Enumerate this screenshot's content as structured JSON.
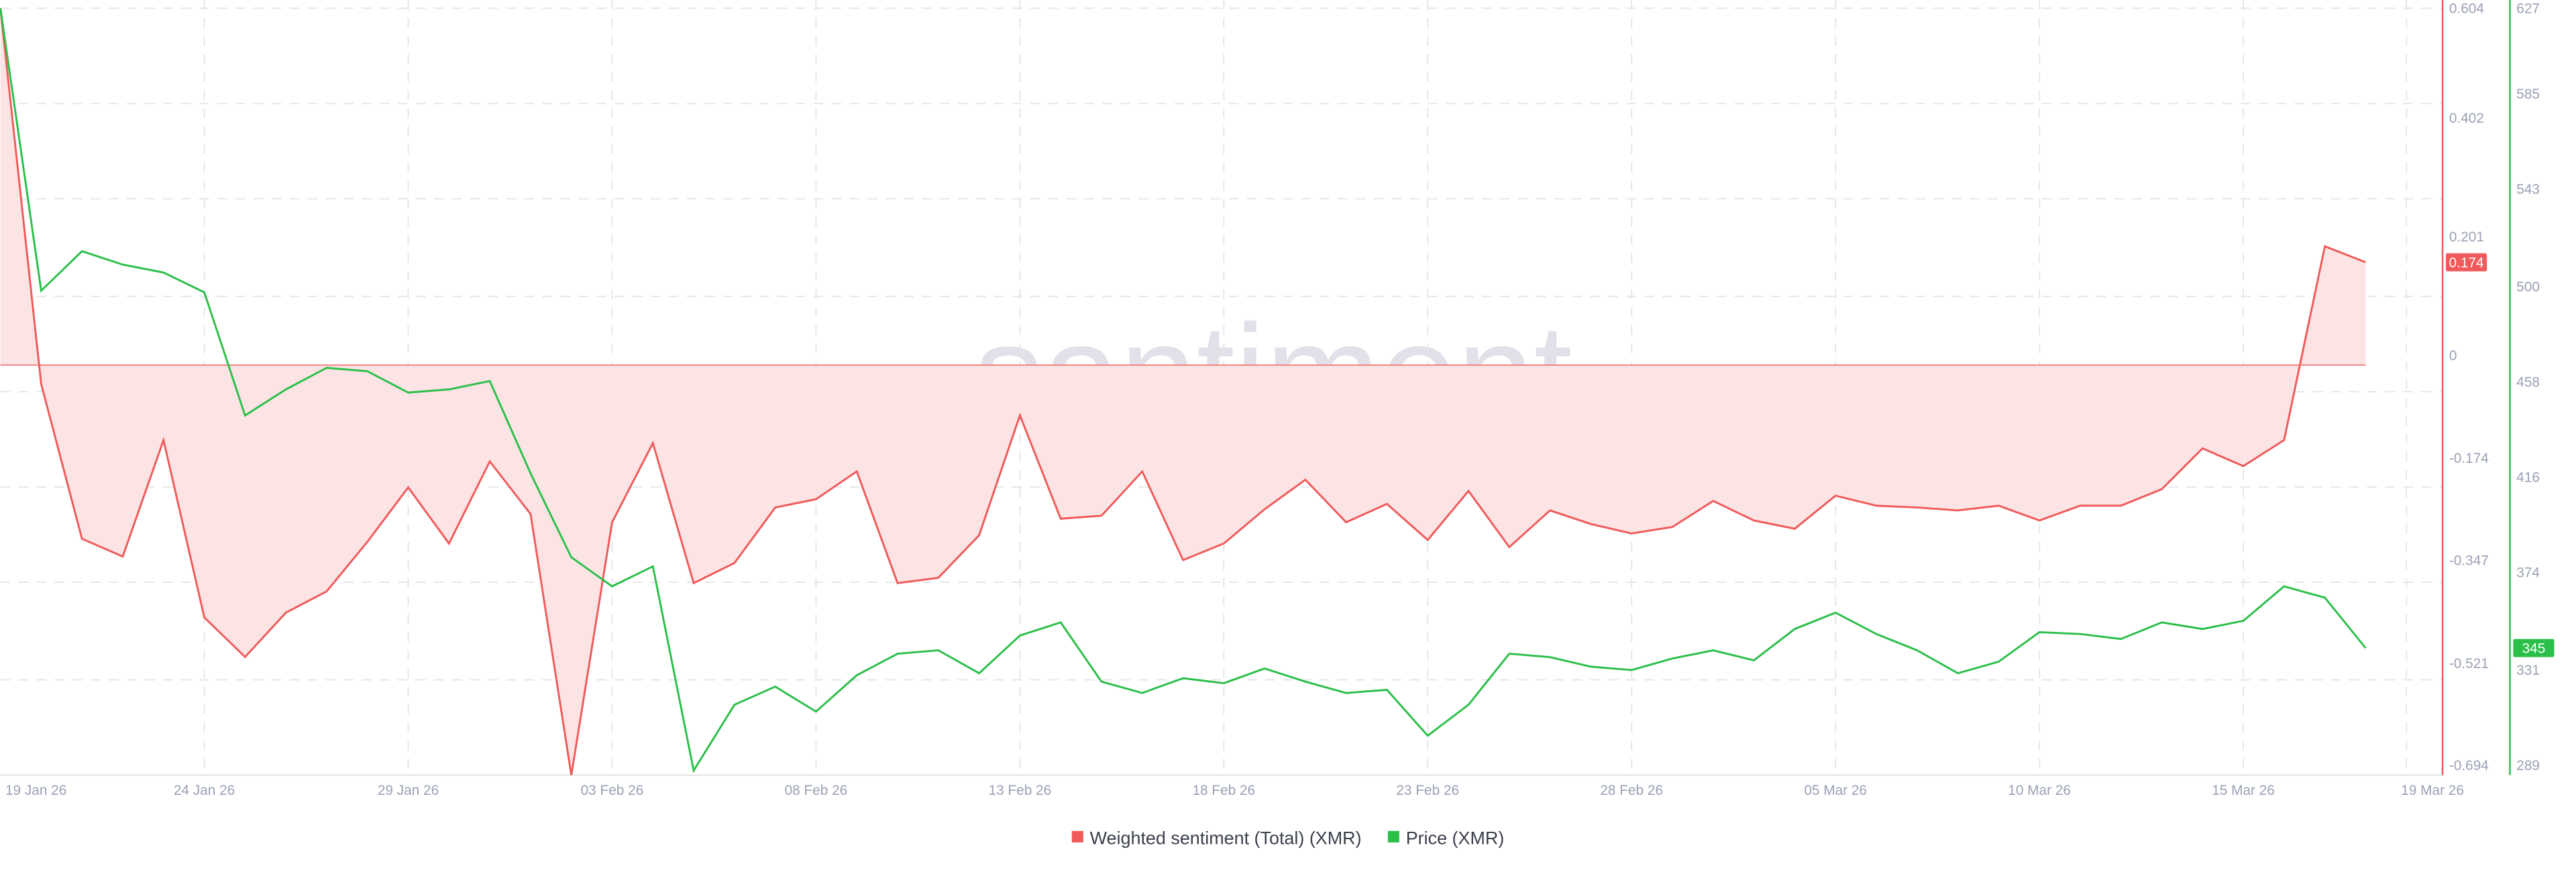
{
  "chart_data": {
    "type": "line",
    "watermark": "santiment",
    "x": [
      "2026-01-19",
      "2026-01-20",
      "2026-01-21",
      "2026-01-22",
      "2026-01-23",
      "2026-01-24",
      "2026-01-25",
      "2026-01-26",
      "2026-01-27",
      "2026-01-28",
      "2026-01-29",
      "2026-01-30",
      "2026-01-31",
      "2026-02-01",
      "2026-02-02",
      "2026-02-03",
      "2026-02-04",
      "2026-02-05",
      "2026-02-06",
      "2026-02-07",
      "2026-02-08",
      "2026-02-09",
      "2026-02-10",
      "2026-02-11",
      "2026-02-12",
      "2026-02-13",
      "2026-02-14",
      "2026-02-15",
      "2026-02-16",
      "2026-02-17",
      "2026-02-18",
      "2026-02-19",
      "2026-02-20",
      "2026-02-21",
      "2026-02-22",
      "2026-02-23",
      "2026-02-24",
      "2026-02-25",
      "2026-02-26",
      "2026-02-27",
      "2026-02-28",
      "2026-03-01",
      "2026-03-02",
      "2026-03-03",
      "2026-03-04",
      "2026-03-05",
      "2026-03-06",
      "2026-03-07",
      "2026-03-08",
      "2026-03-09",
      "2026-03-10",
      "2026-03-11",
      "2026-03-12",
      "2026-03-13",
      "2026-03-14",
      "2026-03-15",
      "2026-03-16",
      "2026-03-17",
      "2026-03-18"
    ],
    "xlim": [
      "2026-01-19",
      "2026-03-19"
    ],
    "xticks": [
      {
        "value": "2026-01-19",
        "label": "19 Jan 26"
      },
      {
        "value": "2026-01-24",
        "label": "24 Jan 26"
      },
      {
        "value": "2026-01-29",
        "label": "29 Jan 26"
      },
      {
        "value": "2026-02-03",
        "label": "03 Feb 26"
      },
      {
        "value": "2026-02-08",
        "label": "08 Feb 26"
      },
      {
        "value": "2026-02-13",
        "label": "13 Feb 26"
      },
      {
        "value": "2026-02-18",
        "label": "18 Feb 26"
      },
      {
        "value": "2026-02-23",
        "label": "23 Feb 26"
      },
      {
        "value": "2026-02-28",
        "label": "28 Feb 26"
      },
      {
        "value": "2026-03-05",
        "label": "05 Mar 26"
      },
      {
        "value": "2026-03-10",
        "label": "10 Mar 26"
      },
      {
        "value": "2026-03-15",
        "label": "15 Mar 26"
      },
      {
        "value": "2026-03-19",
        "label": "19 Mar 26"
      }
    ],
    "ylim": [
      -0.694,
      0.604
    ],
    "yticks": [
      0.604,
      0.402,
      0.201,
      0,
      -0.174,
      -0.347,
      -0.521,
      -0.694
    ],
    "y2lim": [
      289,
      627
    ],
    "y2ticks": [
      627,
      585,
      543,
      500,
      458,
      416,
      374,
      331,
      289
    ],
    "grid": true,
    "legend": "bottom",
    "series": [
      {
        "name": "Weighted sentiment (Total) (XMR)",
        "color": "#f05a5a",
        "fill": "#fde4e4",
        "values": [
          0.604,
          -0.032,
          -0.294,
          -0.324,
          -0.127,
          -0.427,
          -0.494,
          -0.419,
          -0.383,
          -0.299,
          -0.207,
          -0.302,
          -0.163,
          -0.252,
          -0.694,
          -0.266,
          -0.132,
          -0.369,
          -0.335,
          -0.241,
          -0.227,
          -0.18,
          -0.369,
          -0.36,
          -0.288,
          -0.085,
          -0.26,
          -0.255,
          -0.18,
          -0.33,
          -0.302,
          -0.244,
          -0.194,
          -0.266,
          -0.235,
          -0.296,
          -0.213,
          -0.308,
          -0.246,
          -0.269,
          -0.285,
          -0.274,
          -0.23,
          -0.263,
          -0.277,
          -0.221,
          -0.238,
          -0.241,
          -0.246,
          -0.238,
          -0.263,
          -0.238,
          -0.238,
          -0.21,
          -0.141,
          -0.171,
          -0.127,
          0.201,
          0.174
        ]
      },
      {
        "name": "Price (XMR)",
        "color": "#2bbf4a",
        "axis": "y2",
        "values": [
          627,
          502.5,
          519.9,
          514,
          510.5,
          501.8,
          447.5,
          459,
          468.5,
          467,
          457.6,
          459,
          462.7,
          422,
          385,
          372.2,
          381,
          291,
          320,
          328,
          317,
          333,
          342.5,
          344,
          333.9,
          350.5,
          356.3,
          330.2,
          325.2,
          331.7,
          329.5,
          336,
          330.2,
          325.2,
          326.6,
          306.4,
          320,
          342.5,
          341,
          336.8,
          335.3,
          340.4,
          344,
          339.6,
          353.4,
          360.6,
          351.2,
          344,
          333.9,
          339,
          352,
          351.2,
          349,
          356.3,
          353.4,
          357,
          372.2,
          367.2,
          345
        ]
      }
    ]
  }
}
